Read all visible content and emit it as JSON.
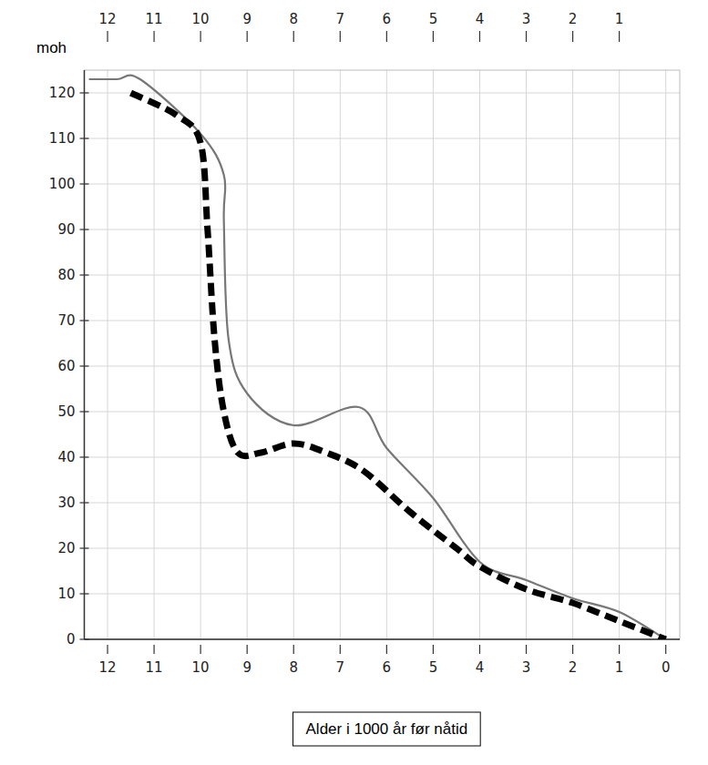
{
  "chart_data": {
    "type": "line",
    "y_label": "moh",
    "x_label": "Alder i 1000 år før nåtid",
    "xlim": [
      12.5,
      -0.3
    ],
    "xticks": [
      12,
      11,
      10,
      9,
      8,
      7,
      6,
      5,
      4,
      3,
      2,
      1,
      0
    ],
    "x2ticks": [
      12,
      11,
      10,
      9,
      8,
      7,
      6,
      5,
      4,
      3,
      2,
      1
    ],
    "ylim": [
      0,
      125
    ],
    "yticks": [
      0,
      10,
      20,
      30,
      40,
      50,
      60,
      70,
      80,
      90,
      100,
      110,
      120
    ],
    "grid": true,
    "series": [
      {
        "color": "#777777",
        "line_style": "solid",
        "marker": "none",
        "x": [
          12.4,
          11.8,
          11.3,
          10.0,
          9.5,
          9.5,
          9.4,
          9.0,
          8.0,
          6.6,
          6.0,
          5.0,
          4.0,
          3.0,
          2.0,
          1.0,
          0.0
        ],
        "values": [
          123,
          123,
          123,
          111,
          102,
          92,
          66,
          54,
          47,
          51,
          42,
          31,
          17,
          13,
          9,
          6,
          0
        ]
      },
      {
        "color": "#000000",
        "line_style": "dashed",
        "marker": "none",
        "x": [
          11.5,
          10.5,
          10.0,
          9.85,
          9.7,
          9.5,
          9.2,
          8.7,
          8.0,
          7.3,
          6.5,
          5.5,
          4.5,
          4.0,
          3.0,
          2.0,
          1.0,
          0.0
        ],
        "values": [
          120,
          115,
          109,
          90,
          66,
          50,
          41,
          41,
          43,
          41,
          37,
          28,
          20,
          16,
          11,
          8,
          4,
          0
        ]
      }
    ]
  }
}
